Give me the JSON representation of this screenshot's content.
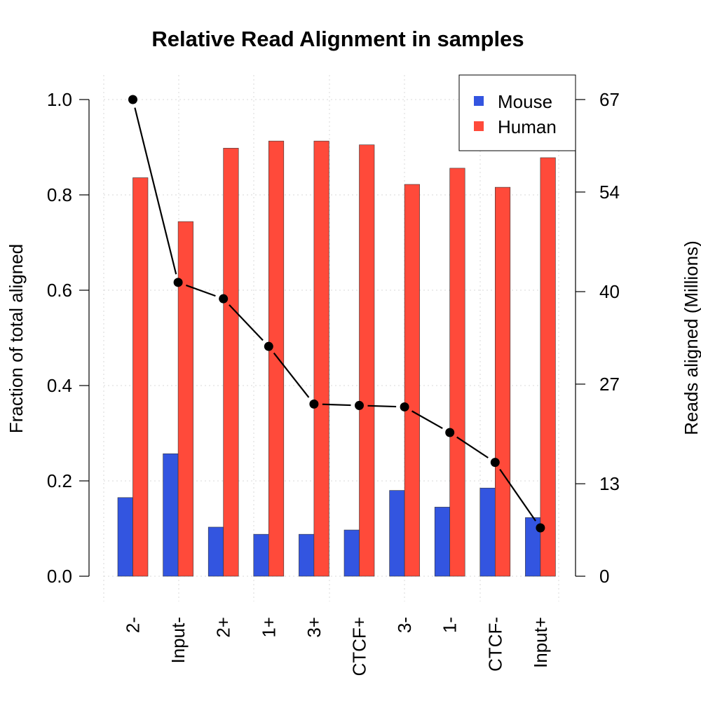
{
  "chart_data": {
    "type": "bar",
    "title": "Relative Read Alignment in samples",
    "ylabel": "Fraction of total aligned",
    "y2label": "Reads aligned (Millions)",
    "categories": [
      "2-",
      "Input-",
      "2+",
      "1+",
      "3+",
      "CTCF+",
      "3-",
      "1-",
      "CTCF-",
      "Input+"
    ],
    "ylim": [
      0,
      1.0
    ],
    "yticks": [
      "0.0",
      "0.2",
      "0.4",
      "0.6",
      "0.8",
      "1.0"
    ],
    "y2lim": [
      0,
      67
    ],
    "y2ticks": [
      "0",
      "13",
      "27",
      "40",
      "54",
      "67"
    ],
    "grid": true,
    "legend_position": "top-right",
    "series": [
      {
        "name": "Mouse",
        "color": "#3355e0",
        "values": [
          0.165,
          0.257,
          0.103,
          0.088,
          0.088,
          0.097,
          0.18,
          0.145,
          0.185,
          0.123
        ]
      },
      {
        "name": "Human",
        "color": "#ff4a3a",
        "values": [
          0.836,
          0.744,
          0.898,
          0.913,
          0.913,
          0.905,
          0.822,
          0.856,
          0.816,
          0.878
        ]
      }
    ],
    "line_series": {
      "axis": "right",
      "color": "#000000",
      "values": [
        67.0,
        41.3,
        39.0,
        32.3,
        24.2,
        24.0,
        23.8,
        20.2,
        16.0,
        6.8
      ]
    }
  }
}
